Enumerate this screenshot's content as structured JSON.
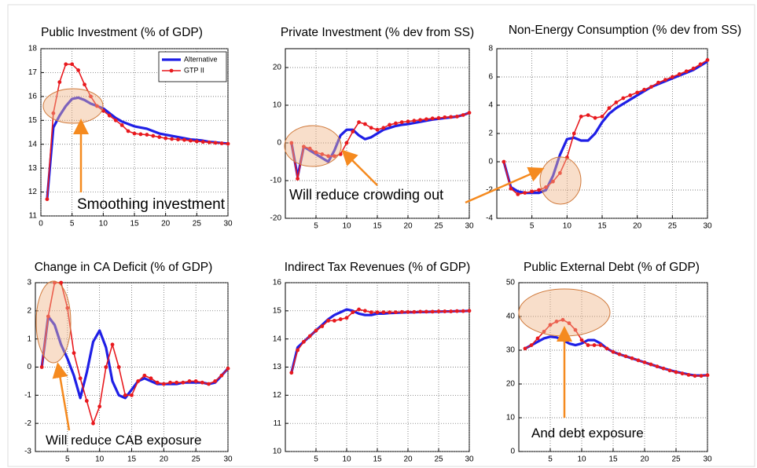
{
  "chart_data": [
    {
      "type": "line",
      "title": "Public Investment (% of GDP)",
      "xlim": [
        0,
        30
      ],
      "xticks": [
        0,
        5,
        10,
        15,
        20,
        25,
        30
      ],
      "ylim": [
        11,
        18
      ],
      "yticks": [
        11,
        12,
        13,
        14,
        15,
        16,
        17,
        18
      ],
      "grid": true,
      "legend": "upper right",
      "x": [
        1,
        2,
        3,
        4,
        5,
        6,
        7,
        8,
        9,
        10,
        11,
        12,
        13,
        14,
        15,
        16,
        17,
        18,
        19,
        20,
        21,
        22,
        23,
        24,
        25,
        26,
        27,
        28,
        29,
        30
      ],
      "series": [
        {
          "name": "Alternative",
          "color": "#1f1fe6",
          "values": [
            11.7,
            14.7,
            15.2,
            15.6,
            15.9,
            15.95,
            15.85,
            15.7,
            15.6,
            15.5,
            15.3,
            15.1,
            14.95,
            14.85,
            14.75,
            14.7,
            14.65,
            14.55,
            14.45,
            14.4,
            14.35,
            14.3,
            14.25,
            14.2,
            14.18,
            14.15,
            14.1,
            14.08,
            14.05,
            14.03
          ]
        },
        {
          "name": "GTP II",
          "color": "#e8191e",
          "values": [
            11.7,
            15.3,
            16.6,
            17.35,
            17.35,
            17.1,
            16.5,
            16.0,
            15.6,
            15.4,
            15.2,
            15.0,
            14.8,
            14.55,
            14.45,
            14.42,
            14.4,
            14.35,
            14.3,
            14.25,
            14.22,
            14.2,
            14.18,
            14.15,
            14.12,
            14.1,
            14.08,
            14.06,
            14.04,
            14.02
          ]
        }
      ],
      "annotations": [
        "Smoothing investment"
      ]
    },
    {
      "type": "line",
      "title": "Private Investment (% dev from SS)",
      "xlim": [
        0,
        30
      ],
      "xticks": [
        5,
        10,
        15,
        20,
        25,
        30
      ],
      "ylim": [
        -20,
        25
      ],
      "yticks": [
        -20,
        -10,
        0,
        10,
        20
      ],
      "grid": true,
      "x": [
        1,
        2,
        3,
        4,
        5,
        6,
        7,
        8,
        9,
        10,
        11,
        12,
        13,
        14,
        15,
        16,
        17,
        18,
        19,
        20,
        21,
        22,
        23,
        24,
        25,
        26,
        27,
        28,
        29,
        30
      ],
      "series": [
        {
          "color": "#1f1fe6",
          "values": [
            0,
            -9,
            -1,
            -2,
            -3,
            -4,
            -5,
            -2,
            2,
            3.5,
            3.5,
            2,
            1,
            1.5,
            2.5,
            3.5,
            4,
            4.5,
            4.8,
            5,
            5.3,
            5.6,
            5.9,
            6.2,
            6.4,
            6.6,
            6.8,
            7,
            7.4,
            8
          ]
        },
        {
          "color": "#e8191e",
          "values": [
            0,
            -9.5,
            -1,
            -1.5,
            -2.5,
            -3,
            -3.5,
            -3.5,
            -3,
            0,
            3,
            5.5,
            5,
            4,
            3.5,
            4,
            4.8,
            5.2,
            5.5,
            5.7,
            5.9,
            6.1,
            6.3,
            6.5,
            6.6,
            6.8,
            6.9,
            7.0,
            7.4,
            8.0
          ]
        }
      ],
      "annotations": [
        "Will reduce crowding out"
      ]
    },
    {
      "type": "line",
      "title": "Non-Energy Consumption (% dev from SS)",
      "xlim": [
        0,
        30
      ],
      "xticks": [
        5,
        10,
        15,
        20,
        25,
        30
      ],
      "ylim": [
        -4,
        8
      ],
      "yticks": [
        -4,
        -2,
        0,
        2,
        4,
        6,
        8
      ],
      "grid": true,
      "x": [
        1,
        2,
        3,
        4,
        5,
        6,
        7,
        8,
        9,
        10,
        11,
        12,
        13,
        14,
        15,
        16,
        17,
        18,
        19,
        20,
        21,
        22,
        23,
        24,
        25,
        26,
        27,
        28,
        29,
        30
      ],
      "series": [
        {
          "color": "#1f1fe6",
          "values": [
            0,
            -1.8,
            -2.1,
            -2.2,
            -2.2,
            -2.2,
            -2.0,
            -1.0,
            0.5,
            1.6,
            1.7,
            1.5,
            1.5,
            2,
            2.8,
            3.4,
            3.8,
            4.1,
            4.4,
            4.7,
            5.0,
            5.3,
            5.5,
            5.7,
            5.9,
            6.1,
            6.3,
            6.5,
            6.8,
            7.1
          ]
        },
        {
          "color": "#e8191e",
          "values": [
            0,
            -1.9,
            -2.3,
            -2.2,
            -2.1,
            -2.0,
            -1.8,
            -1.4,
            -0.8,
            0.3,
            2.0,
            3.2,
            3.3,
            3.1,
            3.2,
            3.8,
            4.2,
            4.5,
            4.7,
            4.9,
            5.1,
            5.3,
            5.6,
            5.8,
            6.0,
            6.2,
            6.4,
            6.6,
            6.9,
            7.2
          ]
        }
      ]
    },
    {
      "type": "line",
      "title": "Change in CA Deficit (% of GDP)",
      "xlim": [
        0,
        30
      ],
      "xticks": [
        5,
        10,
        15,
        20,
        25,
        30
      ],
      "ylim": [
        -3,
        3
      ],
      "yticks": [
        -3,
        -2,
        -1,
        0,
        1,
        2,
        3
      ],
      "grid": true,
      "x": [
        1,
        2,
        3,
        4,
        5,
        6,
        7,
        8,
        9,
        10,
        11,
        12,
        13,
        14,
        15,
        16,
        17,
        18,
        19,
        20,
        21,
        22,
        23,
        24,
        25,
        26,
        27,
        28,
        29,
        30
      ],
      "series": [
        {
          "color": "#1f1fe6",
          "values": [
            0,
            1.8,
            1.5,
            0.8,
            0.3,
            -0.3,
            -1.1,
            -0.2,
            0.9,
            1.3,
            0.7,
            -0.5,
            -1.0,
            -1.1,
            -0.8,
            -0.5,
            -0.4,
            -0.5,
            -0.6,
            -0.6,
            -0.6,
            -0.6,
            -0.55,
            -0.55,
            -0.55,
            -0.55,
            -0.6,
            -0.55,
            -0.3,
            -0.05
          ]
        },
        {
          "color": "#e8191e",
          "values": [
            0,
            1.8,
            3.0,
            3.0,
            2.1,
            0.5,
            -0.4,
            -1.2,
            -2.0,
            -1.4,
            0,
            0.8,
            0,
            -1.0,
            -1.0,
            -0.5,
            -0.3,
            -0.4,
            -0.55,
            -0.6,
            -0.55,
            -0.55,
            -0.55,
            -0.5,
            -0.5,
            -0.55,
            -0.6,
            -0.5,
            -0.3,
            -0.05
          ]
        }
      ],
      "annotations": [
        "Will reduce  CAB exposure"
      ]
    },
    {
      "type": "line",
      "title": "Indirect Tax Revenues (% of GDP)",
      "xlim": [
        0,
        30
      ],
      "xticks": [
        5,
        10,
        15,
        20,
        25,
        30
      ],
      "ylim": [
        10,
        16
      ],
      "yticks": [
        10,
        11,
        12,
        13,
        14,
        15,
        16
      ],
      "grid": true,
      "x": [
        1,
        2,
        3,
        4,
        5,
        6,
        7,
        8,
        9,
        10,
        11,
        12,
        13,
        14,
        15,
        16,
        17,
        18,
        19,
        20,
        21,
        22,
        23,
        24,
        25,
        26,
        27,
        28,
        29,
        30
      ],
      "series": [
        {
          "color": "#1f1fe6",
          "values": [
            12.8,
            13.7,
            13.9,
            14.1,
            14.3,
            14.5,
            14.7,
            14.85,
            14.95,
            15.05,
            15.0,
            14.9,
            14.85,
            14.85,
            14.9,
            14.9,
            14.92,
            14.93,
            14.94,
            14.95,
            14.95,
            14.96,
            14.96,
            14.97,
            14.97,
            14.98,
            14.98,
            14.99,
            14.99,
            15.0
          ]
        },
        {
          "color": "#e8191e",
          "values": [
            12.8,
            13.6,
            13.9,
            14.1,
            14.3,
            14.45,
            14.65,
            14.65,
            14.7,
            14.75,
            14.95,
            15.05,
            15.0,
            14.95,
            14.95,
            14.95,
            14.95,
            14.95,
            14.96,
            14.96,
            14.96,
            14.97,
            14.97,
            14.97,
            14.98,
            14.98,
            14.98,
            14.99,
            14.99,
            15.0
          ]
        }
      ]
    },
    {
      "type": "line",
      "title": "Public External Debt (% of GDP)",
      "xlim": [
        0,
        30
      ],
      "xticks": [
        5,
        10,
        15,
        20,
        25,
        30
      ],
      "ylim": [
        0,
        50
      ],
      "yticks": [
        0,
        10,
        20,
        30,
        40,
        50
      ],
      "grid": true,
      "x": [
        1,
        2,
        3,
        4,
        5,
        6,
        7,
        8,
        9,
        10,
        11,
        12,
        13,
        14,
        15,
        16,
        17,
        18,
        19,
        20,
        21,
        22,
        23,
        24,
        25,
        26,
        27,
        28,
        29,
        30
      ],
      "series": [
        {
          "color": "#1f1fe6",
          "values": [
            30.5,
            31.5,
            32.5,
            33.5,
            34,
            33.8,
            33,
            32,
            31.5,
            32,
            33,
            33,
            32,
            30.5,
            29.5,
            28.8,
            28.2,
            27.6,
            27,
            26.4,
            25.8,
            25.2,
            24.6,
            24.1,
            23.6,
            23.2,
            22.8,
            22.5,
            22.5,
            22.6
          ]
        },
        {
          "color": "#e8191e",
          "values": [
            30.5,
            31.5,
            33.5,
            35.5,
            37.5,
            38.5,
            39,
            38,
            36,
            33,
            31.5,
            31.5,
            31.5,
            30.5,
            29.5,
            28.8,
            28.2,
            27.6,
            27,
            26.4,
            25.8,
            25.2,
            24.6,
            24,
            23.5,
            23.1,
            22.7,
            22.4,
            22.4,
            22.6
          ]
        }
      ],
      "annotations": [
        "And debt exposure"
      ]
    }
  ]
}
